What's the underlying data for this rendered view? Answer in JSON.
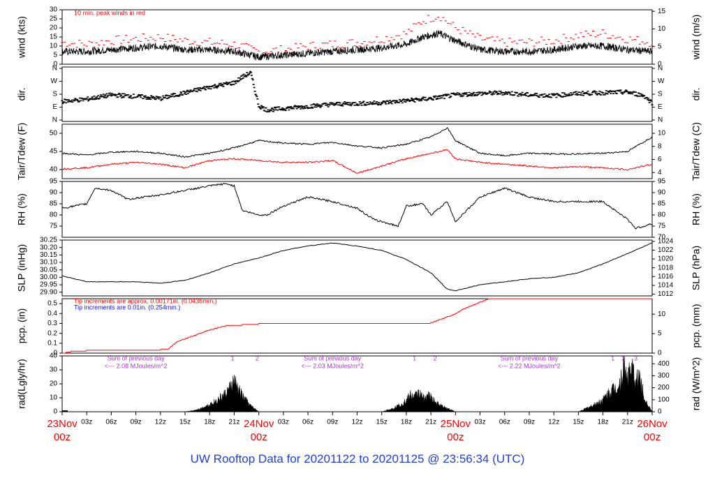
{
  "title": "UW Rooftop Data for 20201122  to  20201125 @ 23:56:34  (UTC)",
  "colors": {
    "title": "#1f3fd6",
    "date_label": "#ff0000",
    "purple": "#b030e0",
    "red": "#ff0000",
    "blue": "#1010ff",
    "black": "#000000"
  },
  "x_axis": {
    "tick_labels": [
      "03z",
      "06z",
      "09z",
      "12z",
      "15z",
      "18z",
      "21z",
      "03z",
      "06z",
      "09z",
      "12z",
      "15z",
      "18z",
      "21z",
      "03z",
      "06z",
      "09z",
      "12z",
      "15z",
      "18z",
      "21z"
    ],
    "tick_hours": [
      3,
      6,
      9,
      12,
      15,
      18,
      21,
      27,
      30,
      33,
      36,
      39,
      42,
      45,
      51,
      54,
      57,
      60,
      63,
      66,
      69
    ],
    "day_labels": [
      {
        "hour": 0,
        "top": "23Nov",
        "bottom": "00z"
      },
      {
        "hour": 24,
        "top": "24Nov",
        "bottom": "00z"
      },
      {
        "hour": 48,
        "top": "25Nov",
        "bottom": "00z"
      },
      {
        "hour": 72,
        "top": "26Nov",
        "bottom": "00z"
      }
    ],
    "range_hours": [
      0,
      72
    ]
  },
  "chart_data": [
    {
      "id": "wind",
      "type": "line",
      "left_label": "wind (kts)",
      "right_label": "wind (m/s)",
      "left_ticks": [
        "0",
        "5",
        "10",
        "15",
        "20",
        "25",
        "30"
      ],
      "left_ylim": [
        0,
        30
      ],
      "right_ticks": [
        "0",
        "5",
        "10",
        "15"
      ],
      "right_ylim": [
        0,
        15.43
      ],
      "note": "10 min. peak winds in red",
      "series": [
        {
          "name": "10 min. peak winds",
          "color": "red",
          "style": "dashes",
          "x": [
            0,
            3,
            6,
            9,
            12,
            15,
            18,
            21,
            24,
            27,
            30,
            33,
            36,
            39,
            42,
            44,
            46,
            48,
            51,
            54,
            57,
            60,
            63,
            66,
            69,
            72
          ],
          "y": [
            12,
            11,
            13,
            14,
            15,
            13,
            12,
            11,
            7,
            8,
            10,
            11,
            12,
            14,
            17,
            24,
            27,
            20,
            14,
            12,
            12,
            13,
            16,
            17,
            14,
            12
          ]
        },
        {
          "name": "wind",
          "color": "black",
          "style": "line",
          "x": [
            0,
            3,
            6,
            9,
            12,
            15,
            18,
            21,
            24,
            27,
            30,
            33,
            36,
            39,
            42,
            44,
            46,
            48,
            51,
            54,
            57,
            60,
            63,
            66,
            69,
            72
          ],
          "y": [
            7,
            7,
            8,
            9,
            10,
            8,
            8,
            7,
            4,
            5,
            6,
            7,
            8,
            9,
            11,
            15,
            17,
            13,
            8,
            7,
            7,
            8,
            10,
            10,
            8,
            7
          ]
        }
      ]
    },
    {
      "id": "dir",
      "type": "scatter",
      "left_label": "dir.",
      "right_label": "dir.",
      "left_ticks": [
        "N",
        "E",
        "S",
        "W",
        "N"
      ],
      "right_ticks": [
        "N",
        "E",
        "S",
        "W",
        "N"
      ],
      "ylim_deg": [
        0,
        360
      ],
      "series": [
        {
          "name": "direction",
          "color": "black",
          "x": [
            0,
            3,
            6,
            9,
            12,
            15,
            18,
            21,
            22,
            23,
            24,
            25,
            27,
            30,
            33,
            36,
            39,
            42,
            45,
            48,
            51,
            54,
            57,
            60,
            63,
            66,
            69,
            71,
            72
          ],
          "y": [
            130,
            145,
            175,
            165,
            150,
            190,
            230,
            260,
            300,
            330,
            100,
            70,
            80,
            95,
            110,
            115,
            120,
            135,
            150,
            175,
            185,
            190,
            175,
            170,
            185,
            190,
            195,
            170,
            120
          ]
        }
      ]
    },
    {
      "id": "temp",
      "type": "line",
      "left_label": "Tair/Tdew (F)",
      "right_label": "Tair/Tdew (C)",
      "left_ticks": [
        "40",
        "45",
        "50"
      ],
      "left_ylim": [
        37.5,
        52.5
      ],
      "right_ticks": [
        "4",
        "6",
        "8",
        "10"
      ],
      "right_ylim": [
        3.06,
        11.39
      ],
      "series": [
        {
          "name": "Tair",
          "color": "black",
          "x": [
            0,
            3,
            6,
            9,
            12,
            15,
            18,
            21,
            24,
            27,
            30,
            33,
            36,
            39,
            42,
            45,
            47,
            48,
            51,
            54,
            57,
            60,
            63,
            66,
            69,
            72
          ],
          "y": [
            44.5,
            44,
            44.8,
            45,
            44.5,
            43.5,
            44.5,
            46,
            48,
            47.3,
            47,
            47.5,
            46.5,
            46,
            47,
            49,
            51.5,
            48,
            44.5,
            43.8,
            44.5,
            44.3,
            44.3,
            44.5,
            45,
            49
          ]
        },
        {
          "name": "Tdew",
          "color": "red",
          "x": [
            0,
            3,
            6,
            9,
            12,
            15,
            18,
            21,
            24,
            27,
            30,
            33,
            36,
            39,
            42,
            45,
            47,
            48,
            51,
            54,
            57,
            60,
            63,
            66,
            69,
            72
          ],
          "y": [
            40.2,
            40.5,
            41.5,
            42,
            41.5,
            40.5,
            42.5,
            43,
            42.5,
            42,
            42,
            42.5,
            39,
            41,
            43,
            44.5,
            45.5,
            43,
            42,
            41.5,
            41,
            40.5,
            40.8,
            40.5,
            40,
            41.5
          ]
        }
      ]
    },
    {
      "id": "rh",
      "type": "line",
      "left_label": "RH (%)",
      "right_label": "RH (%)",
      "left_ticks": [
        "75",
        "80",
        "85",
        "90",
        "95"
      ],
      "right_ticks": [
        "70",
        "75",
        "80",
        "85",
        "90",
        "95"
      ],
      "ylim": [
        70,
        95
      ],
      "series": [
        {
          "name": "RH",
          "color": "black",
          "x": [
            0,
            3,
            4,
            6,
            8,
            10,
            12,
            15,
            18,
            20,
            21,
            22,
            24,
            25,
            27,
            30,
            33,
            36,
            38,
            39,
            41,
            42,
            44,
            45,
            47,
            48,
            51,
            54,
            57,
            60,
            63,
            66,
            69,
            70,
            72
          ],
          "y": [
            83,
            85,
            92,
            91,
            87,
            88,
            89,
            91,
            93,
            94,
            93,
            82,
            80,
            80,
            84,
            88,
            86,
            83,
            78,
            77,
            75,
            84,
            85,
            80,
            86,
            77,
            88,
            92,
            88,
            86,
            86,
            86,
            78,
            74,
            76
          ]
        }
      ]
    },
    {
      "id": "slp",
      "type": "line",
      "left_label": "SLP (inHg)",
      "right_label": "SLP (hPa)",
      "left_ticks": [
        "29.90",
        "29.95",
        "30.00",
        "30.05",
        "30.10",
        "30.15",
        "30.20",
        "30.25"
      ],
      "left_ylim": [
        29.875,
        30.25
      ],
      "right_ticks": [
        "1012",
        "1014",
        "1016",
        "1018",
        "1020",
        "1022",
        "1024"
      ],
      "right_ylim": [
        1011.6,
        1024.3
      ],
      "series": [
        {
          "name": "SLP",
          "color": "black",
          "x": [
            0,
            3,
            6,
            9,
            12,
            15,
            18,
            21,
            24,
            27,
            30,
            33,
            36,
            39,
            42,
            45,
            47,
            48,
            51,
            54,
            57,
            60,
            63,
            66,
            69,
            72
          ],
          "y": [
            30.01,
            29.97,
            29.97,
            29.97,
            29.96,
            29.98,
            30.03,
            30.09,
            30.13,
            30.18,
            30.21,
            30.23,
            30.21,
            30.18,
            30.12,
            30.03,
            29.92,
            29.91,
            29.95,
            29.97,
            29.99,
            30.0,
            30.03,
            30.09,
            30.16,
            30.23
          ]
        }
      ]
    },
    {
      "id": "pcp",
      "type": "line",
      "left_label": "pcp. (in)",
      "right_label": "pcp. (mm)",
      "left_ticks": [
        "0",
        "0.1",
        "0.2",
        "0.3",
        "0.4",
        "0.5"
      ],
      "left_ylim": [
        0,
        0.55
      ],
      "right_ticks": [
        "0",
        "5",
        "10"
      ],
      "right_ylim": [
        0,
        13.97
      ],
      "notes": [
        {
          "text": "Tip increments are approx. 0.00171in. (0.0435mm.)",
          "color": "red"
        },
        {
          "text": "Tip increments are 0.01in. (0.254mm.)",
          "color": "blue"
        }
      ],
      "series": [
        {
          "name": "precip",
          "color": "red",
          "x": [
            0,
            1,
            3,
            12,
            13,
            14,
            18,
            20,
            24,
            36,
            45,
            46,
            48,
            49,
            51,
            52,
            72
          ],
          "y": [
            0,
            0.02,
            0.03,
            0.04,
            0.05,
            0.12,
            0.24,
            0.28,
            0.3,
            0.3,
            0.31,
            0.34,
            0.4,
            0.45,
            0.52,
            0.55,
            0.56
          ]
        }
      ]
    },
    {
      "id": "rad",
      "type": "area",
      "left_label": "rad(Lgly/hr)",
      "right_label": "rad (W/m^2)",
      "left_ticks": [
        "0",
        "10",
        "20",
        "30",
        "40"
      ],
      "left_ylim": [
        0,
        40
      ],
      "right_ticks": [
        "0",
        "100",
        "200",
        "300",
        "400"
      ],
      "right_ylim": [
        0,
        465
      ],
      "annotations": [
        {
          "line1": "Sum of previous day",
          "line2": "<--- 2.08 MJoules/m^2",
          "hour": 9
        },
        {
          "line1": "Sum of previous day",
          "line2": "<--- 2.03 MJoules/m^2",
          "hour": 33
        },
        {
          "line1": "Sum of previous day",
          "line2": "<--- 2.22 MJoules/m^2",
          "hour": 57
        }
      ],
      "markers": [
        {
          "label": "1",
          "hour": 20.8
        },
        {
          "label": "2",
          "hour": 23.8
        },
        {
          "label": "1",
          "hour": 43.0
        },
        {
          "label": "2",
          "hour": 45.5
        },
        {
          "label": "1",
          "hour": 67.2
        },
        {
          "label": "2",
          "hour": 68.5
        },
        {
          "label": "3",
          "hour": 70.0
        }
      ],
      "series": [
        {
          "name": "solar radiation",
          "color": "black",
          "x": [
            15,
            16,
            17,
            18,
            19,
            20,
            20.5,
            21,
            21.5,
            22,
            23,
            24,
            39,
            40,
            41,
            42,
            42.5,
            43,
            43.5,
            44,
            44.5,
            45,
            45.5,
            46,
            47,
            48,
            63,
            64,
            65,
            66,
            67,
            68,
            68.5,
            69,
            69.5,
            70,
            70.5,
            71,
            72
          ],
          "y": [
            0,
            1,
            3,
            6,
            10,
            15,
            20,
            25,
            18,
            13,
            5,
            0,
            0,
            2,
            5,
            9,
            14,
            12,
            17,
            11,
            14,
            12,
            8,
            6,
            3,
            0,
            0,
            3,
            6,
            10,
            18,
            22,
            38,
            30,
            36,
            25,
            30,
            12,
            0
          ]
        }
      ]
    }
  ]
}
